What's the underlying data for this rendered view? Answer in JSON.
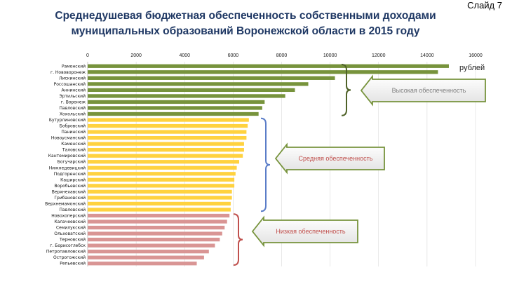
{
  "slide": {
    "label": "Слайд 7"
  },
  "title_lines": [
    "Среднедушевая бюджетная обеспеченность собственными доходами",
    "муниципальных образований Воронежской области в 2015 году"
  ],
  "chart_data": {
    "type": "bar",
    "orientation": "horizontal",
    "title": "Среднедушевая бюджетная обеспеченность собственными доходами муниципальных образований Воронежской области в 2015 году",
    "unit_label": "рублей",
    "xlim": [
      0,
      16000
    ],
    "xticks": [
      0,
      2000,
      4000,
      6000,
      8000,
      10000,
      12000,
      14000,
      16000
    ],
    "categories": [
      "Рамонский",
      "г. Нововоронеж",
      "Лискинский",
      "Россошанский",
      "Аннинский",
      "Эртильский",
      "г. Воронеж",
      "Павловский",
      "Хохольский",
      "Бутурлиновский",
      "Бобровский",
      "Панинский",
      "Новоусманский",
      "Каменский",
      "Таловский",
      "Кантемировский",
      "Богучарский",
      "Нижнедевицкий",
      "Подгоренский",
      "Каширский",
      "Воробьевский",
      "Верхнехавский",
      "Грибановский",
      "Верхнемамонский",
      "Павловский",
      "Новохоперский",
      "Калачеевский",
      "Семилукский",
      "Ольховатский",
      "Терновский",
      "г. Борисоглебск",
      "Петропавловский",
      "Острогожский",
      "Репьевский"
    ],
    "values": [
      14900,
      14450,
      10200,
      9100,
      8550,
      8150,
      7300,
      7200,
      7050,
      6650,
      6600,
      6550,
      6550,
      6450,
      6450,
      6400,
      6250,
      6150,
      6100,
      6050,
      6050,
      5950,
      5950,
      5900,
      5900,
      5850,
      5750,
      5650,
      5550,
      5450,
      5250,
      5000,
      4800,
      4500
    ],
    "groups": [
      {
        "name": "Высокая обеспеченность",
        "color": "#77933c",
        "label_color": "#7f7f7f",
        "from": 0,
        "to": 8
      },
      {
        "name": "Средняя обеспеченность",
        "color": "#ffd23f",
        "label_color": "#c0504d",
        "from": 9,
        "to": 24
      },
      {
        "name": "Низкая обеспеченность",
        "color": "#d99594",
        "label_color": "#c0504d",
        "from": 25,
        "to": 33
      }
    ]
  }
}
